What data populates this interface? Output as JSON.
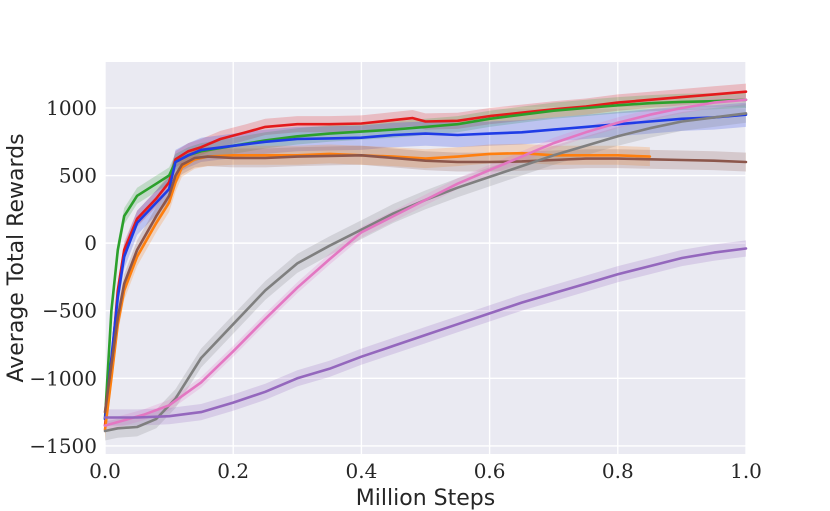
{
  "chart_data": {
    "type": "line",
    "xlabel": "Million Steps",
    "ylabel": "Average Total Rewards",
    "xlim": [
      0.0,
      1.0
    ],
    "ylim": [
      -1560,
      1340
    ],
    "grid": true,
    "background": "#eaeaf2",
    "x_ticks": [
      0.0,
      0.2,
      0.4,
      0.6,
      0.8,
      1.0
    ],
    "x_tick_labels": [
      "0.0",
      "0.2",
      "0.4",
      "0.6",
      "0.8",
      "1.0"
    ],
    "y_ticks": [
      1000,
      500,
      0,
      -500,
      -1000,
      -1500
    ],
    "y_tick_labels": [
      "1000",
      "500",
      "0",
      "−500",
      "−1000",
      "−1500"
    ],
    "series": [
      {
        "color": "#e41a1c",
        "band": 60,
        "points": [
          [
            0.0,
            -1350
          ],
          [
            0.01,
            -900
          ],
          [
            0.02,
            -350
          ],
          [
            0.03,
            -50
          ],
          [
            0.05,
            180
          ],
          [
            0.08,
            330
          ],
          [
            0.1,
            450
          ],
          [
            0.11,
            620
          ],
          [
            0.13,
            680
          ],
          [
            0.15,
            710
          ],
          [
            0.18,
            770
          ],
          [
            0.22,
            820
          ],
          [
            0.25,
            860
          ],
          [
            0.3,
            880
          ],
          [
            0.35,
            880
          ],
          [
            0.4,
            885
          ],
          [
            0.45,
            910
          ],
          [
            0.48,
            925
          ],
          [
            0.5,
            900
          ],
          [
            0.55,
            905
          ],
          [
            0.6,
            940
          ],
          [
            0.65,
            965
          ],
          [
            0.7,
            990
          ],
          [
            0.75,
            1010
          ],
          [
            0.8,
            1040
          ],
          [
            0.85,
            1060
          ],
          [
            0.9,
            1080
          ],
          [
            0.95,
            1100
          ],
          [
            1.0,
            1120
          ]
        ]
      },
      {
        "color": "#2ca02c",
        "band": 60,
        "points": [
          [
            0.0,
            -1300
          ],
          [
            0.01,
            -500
          ],
          [
            0.02,
            -50
          ],
          [
            0.03,
            200
          ],
          [
            0.05,
            350
          ],
          [
            0.08,
            440
          ],
          [
            0.1,
            500
          ],
          [
            0.11,
            600
          ],
          [
            0.13,
            650
          ],
          [
            0.15,
            680
          ],
          [
            0.2,
            720
          ],
          [
            0.25,
            760
          ],
          [
            0.3,
            790
          ],
          [
            0.35,
            810
          ],
          [
            0.4,
            825
          ],
          [
            0.45,
            840
          ],
          [
            0.5,
            860
          ],
          [
            0.55,
            880
          ],
          [
            0.6,
            920
          ],
          [
            0.65,
            950
          ],
          [
            0.7,
            980
          ],
          [
            0.75,
            1000
          ],
          [
            0.8,
            1020
          ],
          [
            0.85,
            1035
          ],
          [
            0.9,
            1045
          ],
          [
            0.95,
            1050
          ],
          [
            1.0,
            1060
          ]
        ]
      },
      {
        "color": "#1f3ce6",
        "band": 90,
        "points": [
          [
            0.0,
            -1300
          ],
          [
            0.01,
            -850
          ],
          [
            0.02,
            -400
          ],
          [
            0.03,
            -100
          ],
          [
            0.05,
            150
          ],
          [
            0.08,
            300
          ],
          [
            0.1,
            400
          ],
          [
            0.11,
            600
          ],
          [
            0.13,
            650
          ],
          [
            0.15,
            690
          ],
          [
            0.2,
            720
          ],
          [
            0.25,
            750
          ],
          [
            0.3,
            770
          ],
          [
            0.35,
            775
          ],
          [
            0.4,
            780
          ],
          [
            0.45,
            800
          ],
          [
            0.5,
            810
          ],
          [
            0.55,
            800
          ],
          [
            0.6,
            810
          ],
          [
            0.65,
            820
          ],
          [
            0.7,
            840
          ],
          [
            0.75,
            860
          ],
          [
            0.8,
            880
          ],
          [
            0.85,
            900
          ],
          [
            0.9,
            920
          ],
          [
            0.95,
            930
          ],
          [
            1.0,
            950
          ]
        ]
      },
      {
        "color": "#ff7f0e",
        "band": 70,
        "points": [
          [
            0.0,
            -1380
          ],
          [
            0.01,
            -1000
          ],
          [
            0.02,
            -600
          ],
          [
            0.03,
            -350
          ],
          [
            0.05,
            -100
          ],
          [
            0.08,
            150
          ],
          [
            0.1,
            300
          ],
          [
            0.11,
            450
          ],
          [
            0.12,
            560
          ],
          [
            0.14,
            620
          ],
          [
            0.16,
            640
          ],
          [
            0.2,
            650
          ],
          [
            0.25,
            650
          ],
          [
            0.3,
            650
          ],
          [
            0.35,
            660
          ],
          [
            0.4,
            650
          ],
          [
            0.45,
            640
          ],
          [
            0.5,
            625
          ],
          [
            0.55,
            640
          ],
          [
            0.6,
            660
          ],
          [
            0.65,
            665
          ],
          [
            0.7,
            650
          ],
          [
            0.75,
            650
          ],
          [
            0.8,
            650
          ],
          [
            0.85,
            640
          ]
        ]
      },
      {
        "color": "#8c564b",
        "band": 70,
        "points": [
          [
            0.0,
            -1250
          ],
          [
            0.01,
            -900
          ],
          [
            0.02,
            -550
          ],
          [
            0.03,
            -300
          ],
          [
            0.05,
            -50
          ],
          [
            0.08,
            200
          ],
          [
            0.1,
            350
          ],
          [
            0.11,
            500
          ],
          [
            0.12,
            580
          ],
          [
            0.14,
            630
          ],
          [
            0.16,
            640
          ],
          [
            0.2,
            630
          ],
          [
            0.25,
            630
          ],
          [
            0.3,
            640
          ],
          [
            0.35,
            645
          ],
          [
            0.4,
            650
          ],
          [
            0.45,
            630
          ],
          [
            0.5,
            610
          ],
          [
            0.55,
            600
          ],
          [
            0.6,
            600
          ],
          [
            0.65,
            605
          ],
          [
            0.7,
            615
          ],
          [
            0.75,
            625
          ],
          [
            0.8,
            625
          ],
          [
            0.85,
            620
          ],
          [
            0.9,
            615
          ],
          [
            0.95,
            610
          ],
          [
            1.0,
            600
          ]
        ]
      },
      {
        "color": "#7f7f7f",
        "band": 70,
        "points": [
          [
            0.0,
            -1390
          ],
          [
            0.02,
            -1370
          ],
          [
            0.05,
            -1360
          ],
          [
            0.08,
            -1300
          ],
          [
            0.11,
            -1150
          ],
          [
            0.15,
            -850
          ],
          [
            0.2,
            -600
          ],
          [
            0.25,
            -350
          ],
          [
            0.3,
            -150
          ],
          [
            0.35,
            -20
          ],
          [
            0.4,
            100
          ],
          [
            0.45,
            220
          ],
          [
            0.5,
            320
          ],
          [
            0.55,
            410
          ],
          [
            0.6,
            490
          ],
          [
            0.65,
            570
          ],
          [
            0.7,
            650
          ],
          [
            0.75,
            720
          ],
          [
            0.8,
            790
          ],
          [
            0.85,
            850
          ],
          [
            0.9,
            900
          ],
          [
            0.95,
            930
          ],
          [
            1.0,
            960
          ]
        ]
      },
      {
        "color": "#e377c2",
        "band": 40,
        "points": [
          [
            0.0,
            -1350
          ],
          [
            0.03,
            -1310
          ],
          [
            0.06,
            -1270
          ],
          [
            0.1,
            -1200
          ],
          [
            0.15,
            -1030
          ],
          [
            0.2,
            -800
          ],
          [
            0.25,
            -560
          ],
          [
            0.3,
            -330
          ],
          [
            0.35,
            -120
          ],
          [
            0.4,
            80
          ],
          [
            0.45,
            200
          ],
          [
            0.5,
            320
          ],
          [
            0.55,
            440
          ],
          [
            0.6,
            540
          ],
          [
            0.65,
            640
          ],
          [
            0.7,
            740
          ],
          [
            0.75,
            820
          ],
          [
            0.8,
            890
          ],
          [
            0.85,
            950
          ],
          [
            0.9,
            1000
          ],
          [
            0.95,
            1040
          ],
          [
            1.0,
            1060
          ]
        ]
      },
      {
        "color": "#9467bd",
        "band": 60,
        "points": [
          [
            0.0,
            -1290
          ],
          [
            0.05,
            -1290
          ],
          [
            0.1,
            -1280
          ],
          [
            0.15,
            -1250
          ],
          [
            0.2,
            -1180
          ],
          [
            0.25,
            -1100
          ],
          [
            0.3,
            -1000
          ],
          [
            0.35,
            -930
          ],
          [
            0.4,
            -840
          ],
          [
            0.45,
            -760
          ],
          [
            0.5,
            -680
          ],
          [
            0.55,
            -600
          ],
          [
            0.6,
            -520
          ],
          [
            0.65,
            -440
          ],
          [
            0.7,
            -370
          ],
          [
            0.75,
            -300
          ],
          [
            0.8,
            -230
          ],
          [
            0.85,
            -170
          ],
          [
            0.9,
            -110
          ],
          [
            0.95,
            -70
          ],
          [
            1.0,
            -40
          ]
        ]
      }
    ]
  }
}
